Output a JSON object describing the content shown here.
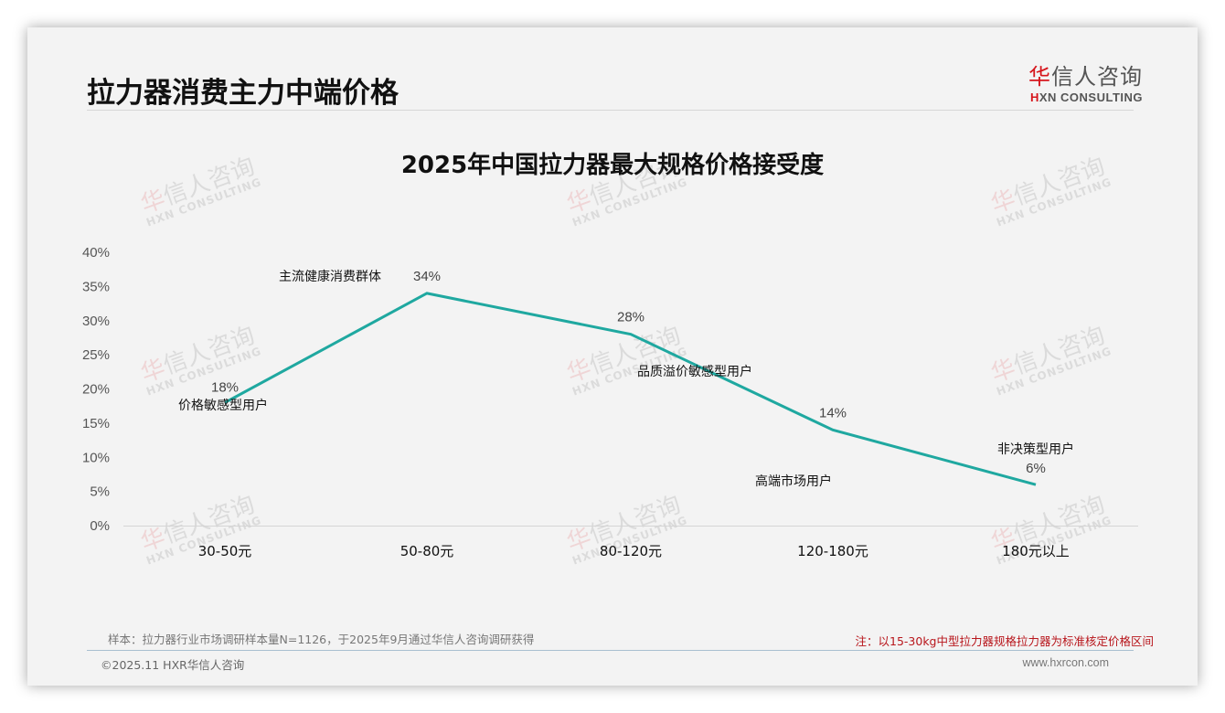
{
  "header": {
    "page_title": "拉力器消费主力中端价格",
    "logo_cn_first": "华",
    "logo_cn_rest": "信人咨询",
    "logo_en_first": "H",
    "logo_en_rest": "XN CONSULTING"
  },
  "watermark": {
    "cn_first": "华",
    "cn_rest": "信人咨询",
    "en": "HXN CONSULTING"
  },
  "colors": {
    "line": "#1fa8a0",
    "brand_red": "#d6161c",
    "note_red": "#b8161c",
    "background": "#f3f3f3"
  },
  "chart_data": {
    "type": "line",
    "title": "2025年中国拉力器最大规格价格接受度",
    "xlabel": "",
    "ylabel": "",
    "categories": [
      "30-50元",
      "50-80元",
      "80-120元",
      "120-180元",
      "180元以上"
    ],
    "values": [
      18,
      34,
      28,
      14,
      6
    ],
    "value_labels": [
      "18%",
      "34%",
      "28%",
      "14%",
      "6%"
    ],
    "y_ticks": [
      "0%",
      "5%",
      "10%",
      "15%",
      "20%",
      "25%",
      "30%",
      "35%",
      "40%"
    ],
    "ylim": [
      0,
      40
    ],
    "grid": false,
    "legend": "none",
    "annotations": [
      "价格敏感型用户",
      "主流健康消费群体",
      "品质溢价敏感型用户",
      "高端市场用户",
      "非决策型用户"
    ]
  },
  "footer": {
    "sample_note": "样本：拉力器行业市场调研样本量N=1126，于2025年9月通过华信人咨询调研获得",
    "red_note": "注：以15-30kg中型拉力器规格拉力器为标准核定价格区间",
    "copyright": "©2025.11 HXR华信人咨询",
    "website": "www.hxrcon.com"
  }
}
